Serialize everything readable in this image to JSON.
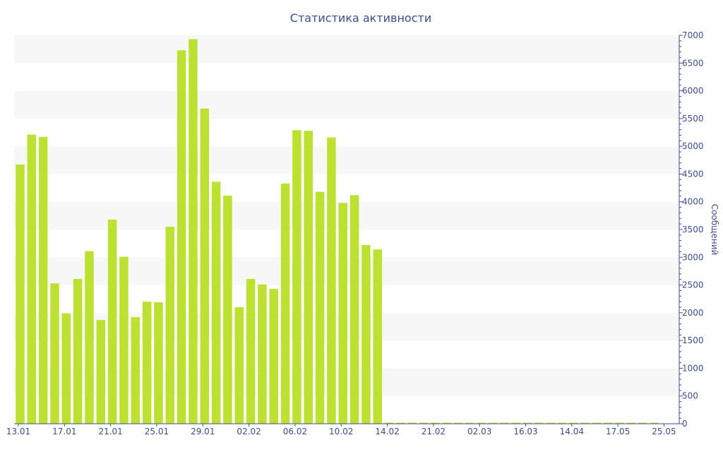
{
  "chart_data": {
    "type": "bar",
    "title": "Статистика активности",
    "xlabel": "",
    "ylabel": "Сообщений",
    "ylim": [
      0,
      7000
    ],
    "y_ticks": [
      0,
      500,
      1000,
      1500,
      2000,
      2500,
      3000,
      3500,
      4000,
      4500,
      5000,
      5500,
      6000,
      6500,
      7000
    ],
    "y_axis_side": "right",
    "grid": "alternating horizontal bands",
    "bar_color": "#bde130",
    "axis_color": "#3c4d8c",
    "band_color": "#f7f7f7",
    "x_tick_labels": [
      "13.01",
      "17.01",
      "21.01",
      "25.01",
      "29.01",
      "02.02",
      "06.02",
      "10.02",
      "14.02",
      "21.02",
      "02.03",
      "16.03",
      "14.04",
      "17.05",
      "25.05"
    ],
    "values": [
      4670,
      5210,
      5170,
      2530,
      1990,
      2610,
      3110,
      1870,
      3680,
      3010,
      1920,
      2200,
      2190,
      3550,
      6730,
      6930,
      5680,
      4360,
      4110,
      2100,
      2610,
      2510,
      2430,
      4330,
      5290,
      5280,
      4180,
      5160,
      3980,
      4120,
      3220,
      3140,
      20,
      20,
      15,
      15,
      20,
      15,
      15,
      15,
      15,
      10,
      10,
      10,
      15,
      20,
      15,
      10,
      10,
      10,
      15,
      10,
      10,
      10,
      10,
      10
    ]
  }
}
